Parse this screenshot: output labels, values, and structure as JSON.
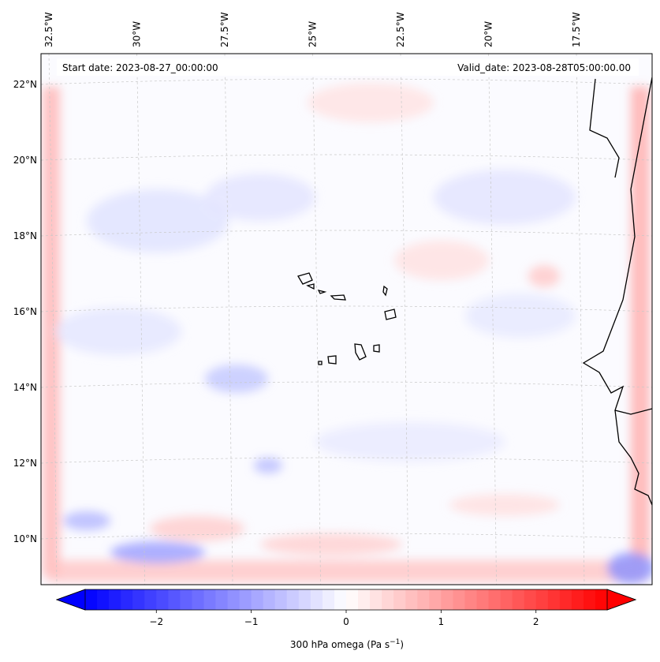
{
  "map": {
    "start_date": "Start date: 2023-08-27_00:00:00",
    "valid_date": "Valid_date: 2023-08-28T05:00:00.00",
    "lon_labels": [
      {
        "text": "32.5°W",
        "lon": -32.5
      },
      {
        "text": "30°W",
        "lon": -30
      },
      {
        "text": "27.5°W",
        "lon": -27.5
      },
      {
        "text": "25°W",
        "lon": -25
      },
      {
        "text": "22.5°W",
        "lon": -22.5
      },
      {
        "text": "20°W",
        "lon": -20
      },
      {
        "text": "17.5°W",
        "lon": -17.5
      }
    ],
    "lat_labels": [
      {
        "text": "22°N",
        "lat": 22
      },
      {
        "text": "20°N",
        "lat": 20
      },
      {
        "text": "18°N",
        "lat": 18
      },
      {
        "text": "16°N",
        "lat": 16
      },
      {
        "text": "14°N",
        "lat": 14
      },
      {
        "text": "12°N",
        "lat": 12
      },
      {
        "text": "10°N",
        "lat": 10
      }
    ],
    "field_colors": {
      "negative": "#0000ff",
      "zero": "#ffffff",
      "positive": "#ff0000"
    }
  },
  "colorbar": {
    "label": "300 hPa omega (Pa s",
    "label_sup": "−1",
    "label_close": ")",
    "vmin": -2.75,
    "vmax": 2.75,
    "ticks": [
      {
        "text": "−2",
        "value": -2
      },
      {
        "text": "−1",
        "value": -1
      },
      {
        "text": "0",
        "value": 0
      },
      {
        "text": "1",
        "value": 1
      },
      {
        "text": "2",
        "value": 2
      }
    ]
  }
}
